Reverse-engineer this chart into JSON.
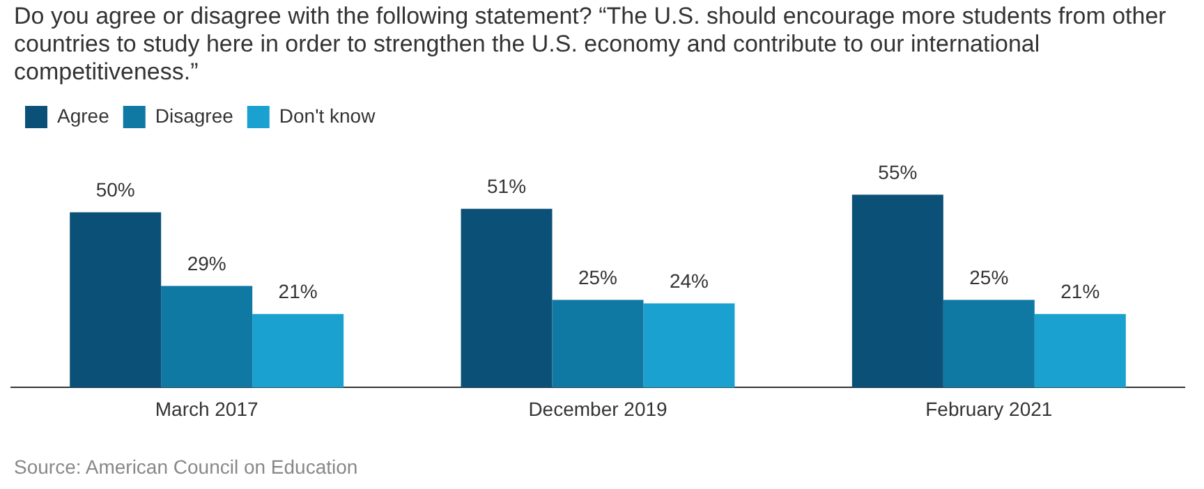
{
  "chart_data": {
    "type": "bar",
    "title": "Do you agree or disagree with the following statement? “The U.S. should encourage more students from other countries to study here in order to strengthen the U.S. economy and contribute to our international competitiveness.”",
    "categories": [
      "March 2017",
      "December 2019",
      "February 2021"
    ],
    "series": [
      {
        "name": "Agree",
        "color": "#0b5177",
        "values": [
          50,
          51,
          55
        ],
        "value_labels": [
          "50%",
          "51%",
          "55%"
        ]
      },
      {
        "name": "Disagree",
        "color": "#0f78a3",
        "values": [
          29,
          25,
          25
        ],
        "value_labels": [
          "29%",
          "25%",
          "25%"
        ]
      },
      {
        "name": "Don't know",
        "color": "#1aa1cf",
        "values": [
          21,
          24,
          21
        ],
        "value_labels": [
          "21%",
          "24%",
          "21%"
        ]
      }
    ],
    "legend": "top left",
    "grid": false,
    "annotations": [
      "Source: American Council on Education"
    ]
  }
}
